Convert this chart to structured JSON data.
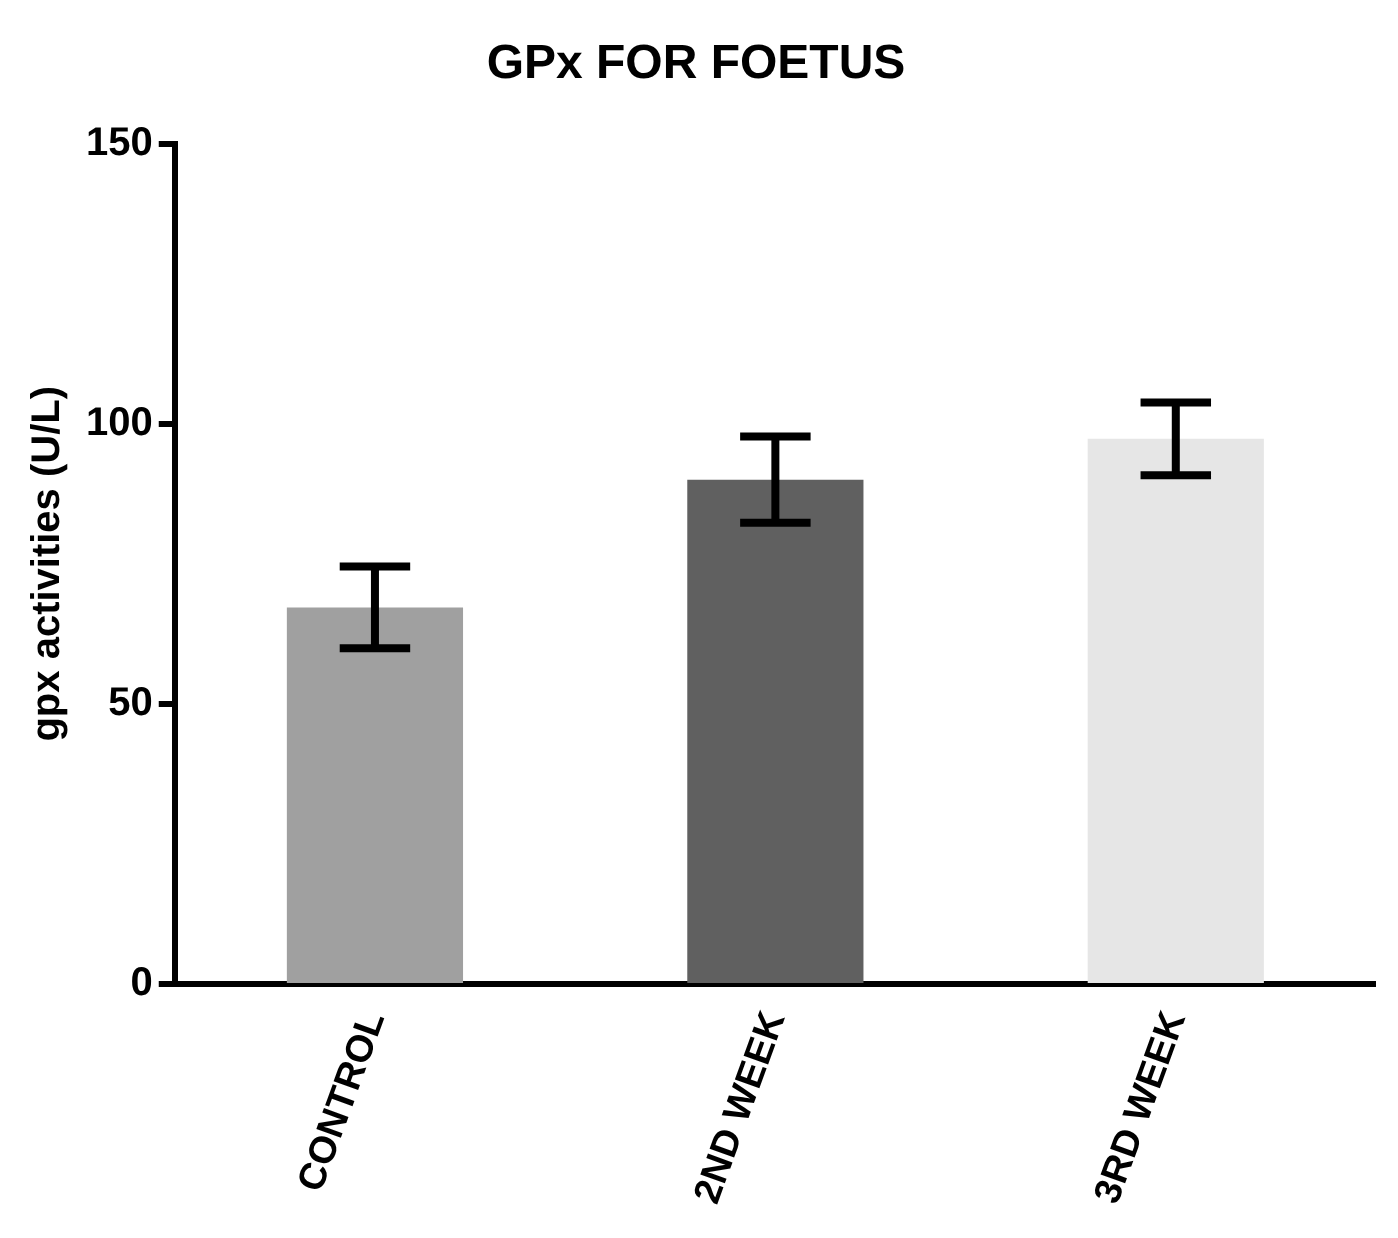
{
  "chart_data": {
    "type": "bar",
    "title": "GPx FOR FOETUS",
    "ylabel": "gpx activities (U/L)",
    "categories": [
      "CONTROL",
      "2ND WEEK",
      "3RD WEEK"
    ],
    "values": [
      67.2,
      90.0,
      97.3
    ],
    "errors": [
      7.3,
      7.7,
      6.5
    ],
    "colors": [
      "#a0a0a0",
      "#606060",
      "#e6e6e6"
    ],
    "ylim": [
      0,
      150
    ],
    "yticks": [
      0,
      50,
      100,
      150
    ],
    "grid": false,
    "legend": false
  }
}
